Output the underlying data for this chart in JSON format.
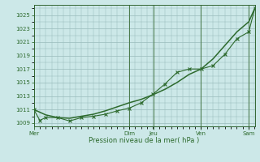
{
  "xlabel": "Pression niveau de la mer( hPa )",
  "bg_color": "#cce8e8",
  "grid_color": "#99bbbb",
  "line_color": "#2d6a2d",
  "ylim": [
    1008.5,
    1026.5
  ],
  "yticks": [
    1009,
    1011,
    1013,
    1015,
    1017,
    1019,
    1021,
    1023,
    1025
  ],
  "day_labels": [
    "Mer",
    "Dim",
    "Jeu",
    "Ven",
    "Sam"
  ],
  "day_positions": [
    0.0,
    0.4324,
    0.5405,
    0.7568,
    0.973
  ],
  "xmax": 1.0,
  "smooth_x": [
    0.0,
    0.054,
    0.108,
    0.162,
    0.216,
    0.27,
    0.324,
    0.378,
    0.432,
    0.486,
    0.54,
    0.594,
    0.648,
    0.703,
    0.757,
    0.811,
    0.865,
    0.919,
    0.973,
    1.0
  ],
  "smooth_y": [
    1011.0,
    1010.2,
    1009.8,
    1009.7,
    1010.0,
    1010.3,
    1010.8,
    1011.4,
    1012.0,
    1012.5,
    1013.2,
    1014.0,
    1015.0,
    1016.2,
    1017.0,
    1018.5,
    1020.5,
    1022.5,
    1024.0,
    1026.0
  ],
  "marked_x": [
    0.0,
    0.027,
    0.054,
    0.108,
    0.162,
    0.216,
    0.27,
    0.324,
    0.378,
    0.432,
    0.486,
    0.54,
    0.594,
    0.648,
    0.703,
    0.757,
    0.811,
    0.865,
    0.919,
    0.973,
    1.0
  ],
  "marked_y": [
    1011.0,
    1009.4,
    1009.8,
    1009.8,
    1009.3,
    1009.8,
    1010.0,
    1010.3,
    1010.8,
    1011.2,
    1012.0,
    1013.3,
    1014.8,
    1016.5,
    1017.0,
    1017.0,
    1017.5,
    1019.2,
    1021.5,
    1022.5,
    1026.0
  ]
}
